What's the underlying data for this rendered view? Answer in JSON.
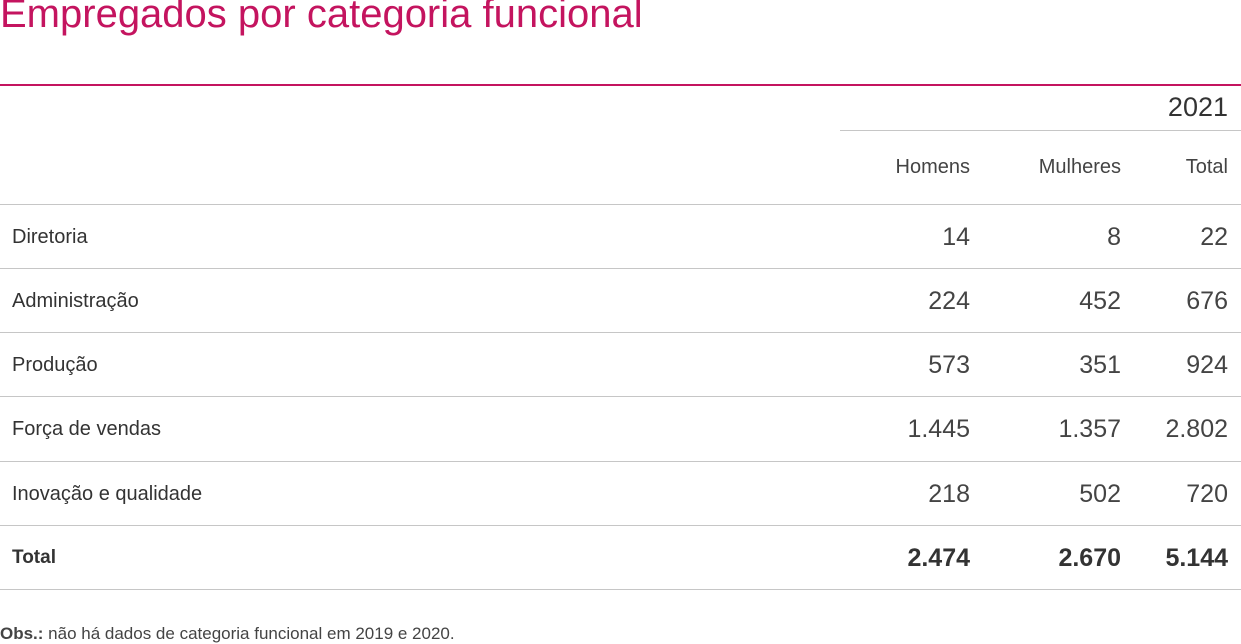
{
  "title": "Empregados por categoria funcional",
  "year": "2021",
  "columns": [
    "Homens",
    "Mulheres",
    "Total"
  ],
  "rows": [
    {
      "label": "Diretoria",
      "homens": "14",
      "mulheres": "8",
      "total": "22"
    },
    {
      "label": "Administração",
      "homens": "224",
      "mulheres": "452",
      "total": "676"
    },
    {
      "label": "Produção",
      "homens": "573",
      "mulheres": "351",
      "total": "924"
    },
    {
      "label": "Força de vendas",
      "homens": "1.445",
      "mulheres": "1.357",
      "total": "2.802"
    },
    {
      "label": "Inovação e qualidade",
      "homens": "218",
      "mulheres": "502",
      "total": "720"
    }
  ],
  "total_row": {
    "label": "Total",
    "homens": "2.474",
    "mulheres": "2.670",
    "total": "5.144"
  },
  "note": {
    "prefix": "Obs.:",
    "text": " não há dados de categoria funcional em 2019 e 2020."
  },
  "colors": {
    "accent": "#c4145f",
    "rule": "#c6c6c6"
  }
}
